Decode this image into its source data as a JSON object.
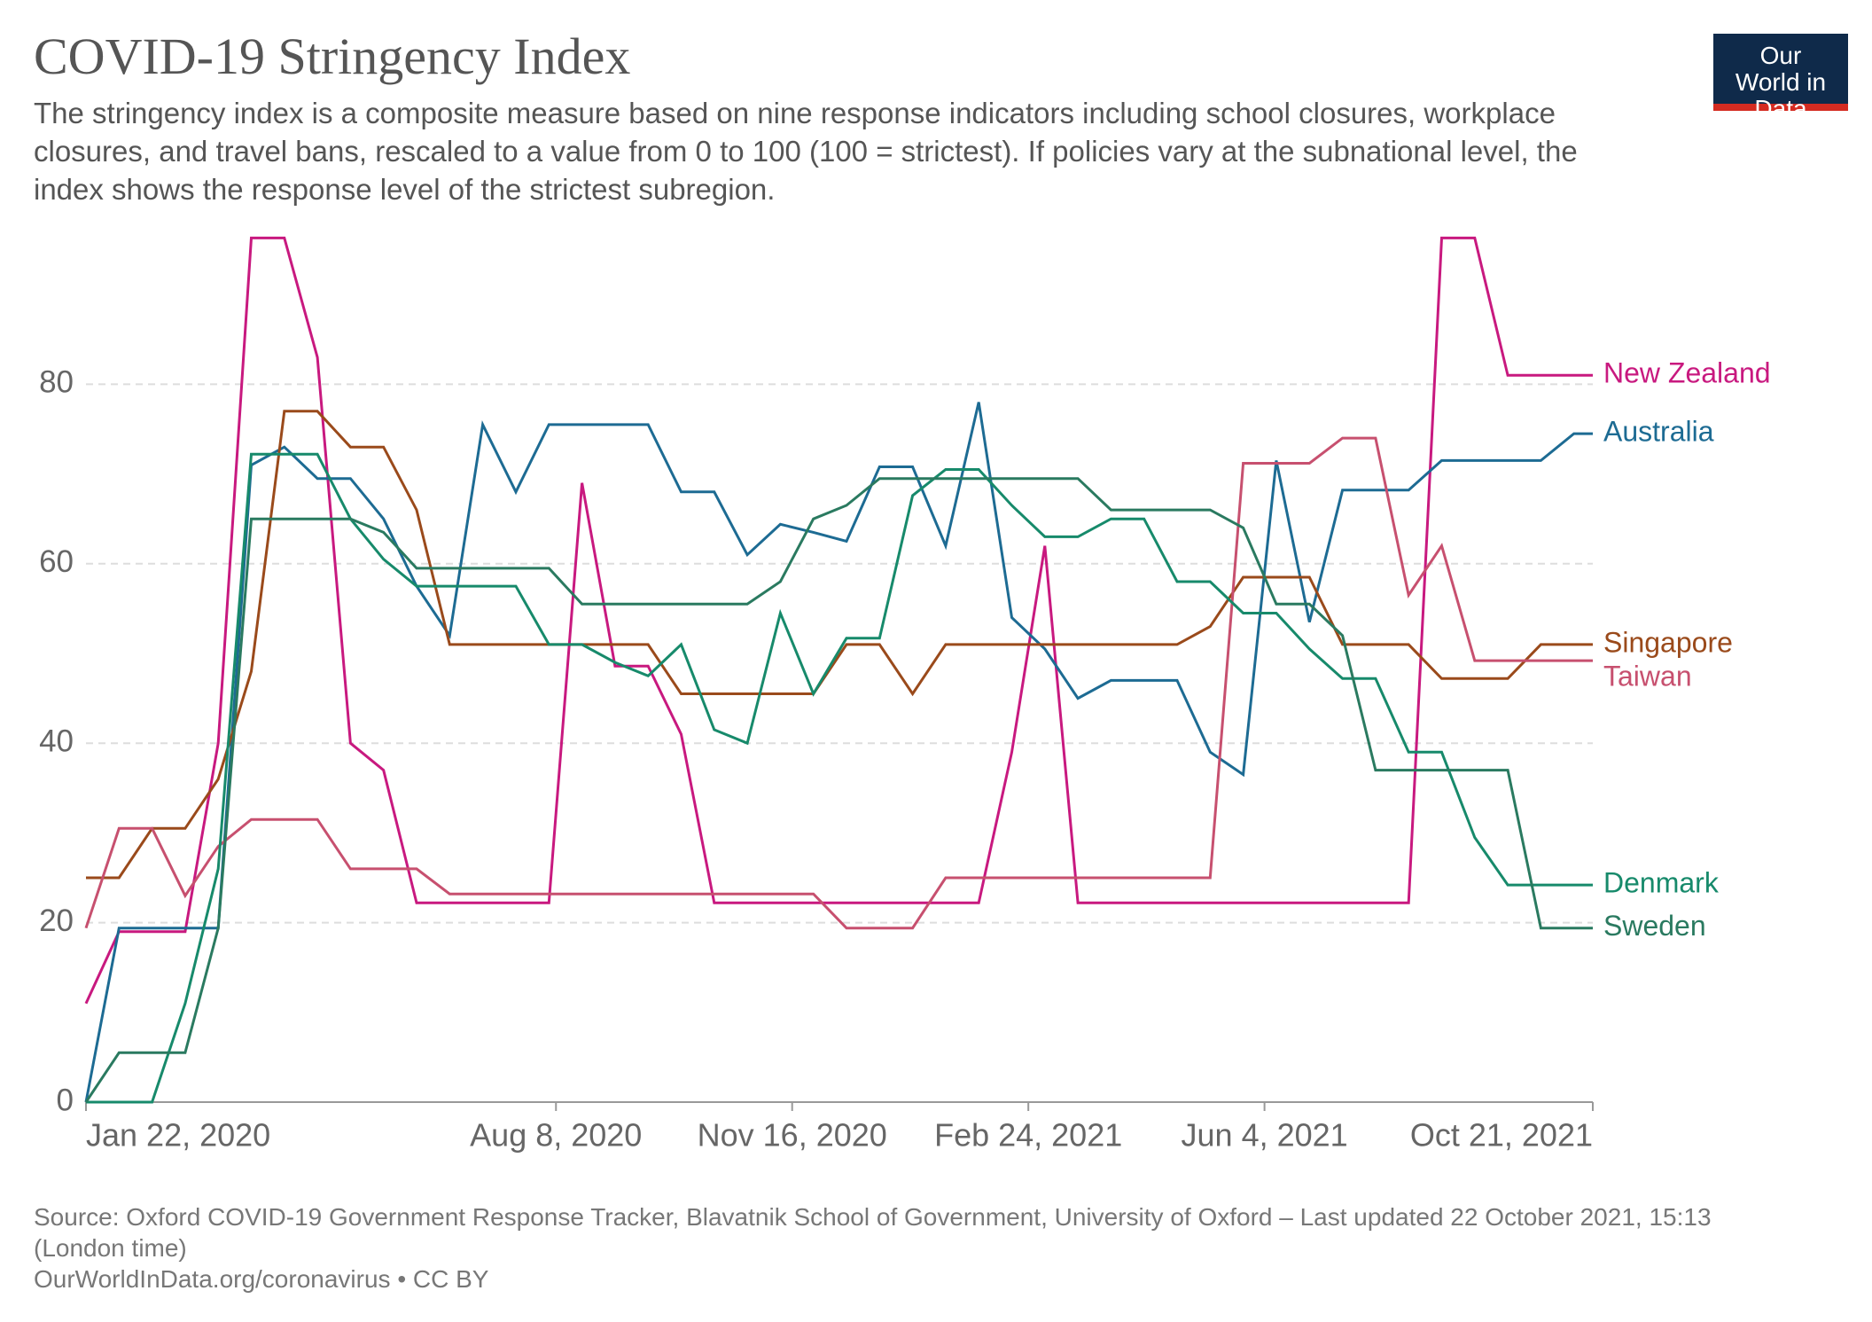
{
  "logo": "Our World in Data",
  "chart_data": {
    "type": "line",
    "title": "COVID-19 Stringency Index",
    "subtitle": "The stringency index is a composite measure based on nine response indicators including school closures, workplace closures, and travel bans, rescaled to a value from 0 to 100 (100 = strictest). If policies vary at the subnational level, the index shows the response level of the strictest subregion.",
    "source": "Source: Oxford COVID-19 Government Response Tracker, Blavatnik School of Government, University of Oxford – Last updated 22 October 2021, 15:13 (London time)",
    "credit": "OurWorldInData.org/coronavirus • CC BY",
    "x": [
      "2020-01-22",
      "2020-02-05",
      "2020-02-19",
      "2020-03-04",
      "2020-03-18",
      "2020-04-01",
      "2020-04-15",
      "2020-04-29",
      "2020-05-13",
      "2020-05-27",
      "2020-06-10",
      "2020-06-24",
      "2020-07-08",
      "2020-07-22",
      "2020-08-05",
      "2020-08-19",
      "2020-09-02",
      "2020-09-16",
      "2020-09-30",
      "2020-10-14",
      "2020-10-28",
      "2020-11-11",
      "2020-11-25",
      "2020-12-09",
      "2020-12-23",
      "2021-01-06",
      "2021-01-20",
      "2021-02-03",
      "2021-02-17",
      "2021-03-03",
      "2021-03-17",
      "2021-03-31",
      "2021-04-14",
      "2021-04-28",
      "2021-05-12",
      "2021-05-26",
      "2021-06-09",
      "2021-06-23",
      "2021-07-07",
      "2021-07-21",
      "2021-08-04",
      "2021-08-18",
      "2021-09-01",
      "2021-09-15",
      "2021-09-29",
      "2021-10-13",
      "2021-10-21"
    ],
    "xlim": [
      "2020-01-22",
      "2021-10-21"
    ],
    "xticks": [
      {
        "value": "2020-01-22",
        "label": "Jan 22, 2020"
      },
      {
        "value": "2020-08-08",
        "label": "Aug 8, 2020"
      },
      {
        "value": "2020-11-16",
        "label": "Nov 16, 2020"
      },
      {
        "value": "2021-02-24",
        "label": "Feb 24, 2021"
      },
      {
        "value": "2021-06-04",
        "label": "Jun 4, 2021"
      },
      {
        "value": "2021-10-21",
        "label": "Oct 21, 2021"
      }
    ],
    "ylim": [
      0,
      100
    ],
    "yticks": [
      0,
      20,
      40,
      60,
      80
    ],
    "grid": true,
    "series": [
      {
        "name": "New Zealand",
        "color": "#c8197f",
        "values": [
          11,
          19,
          19,
          19,
          40,
          96.3,
          96.3,
          83,
          40,
          37,
          22.2,
          22.2,
          22.2,
          22.2,
          22.2,
          69,
          48.6,
          48.6,
          41,
          22.2,
          22.2,
          22.2,
          22.2,
          22.2,
          22.2,
          22.2,
          22.2,
          22.2,
          39,
          62,
          22.2,
          22.2,
          22.2,
          22.2,
          22.2,
          22.2,
          22.2,
          22.2,
          22.2,
          22.2,
          22.2,
          96.3,
          96.3,
          81,
          81,
          81,
          81
        ]
      },
      {
        "name": "Australia",
        "color": "#1d6b93",
        "values": [
          0,
          19.4,
          19.4,
          19.4,
          19.4,
          71,
          73,
          69.5,
          69.5,
          65,
          57.5,
          52,
          75.5,
          68,
          75.5,
          75.5,
          75.5,
          75.5,
          68,
          68,
          61,
          64.4,
          63.5,
          62.5,
          70.8,
          70.8,
          62,
          78,
          54,
          50.5,
          45,
          47,
          47,
          47,
          39,
          36.5,
          71.5,
          53.5,
          68.2,
          68.2,
          68.2,
          71.5,
          71.5,
          71.5,
          71.5,
          74.5,
          74.5
        ]
      },
      {
        "name": "Singapore",
        "color": "#9a4a1b",
        "values": [
          25,
          25,
          30.5,
          30.5,
          36,
          48,
          77,
          77,
          73,
          73,
          66,
          51,
          51,
          51,
          51,
          51,
          51,
          51,
          45.5,
          45.5,
          45.5,
          45.5,
          45.5,
          51,
          51,
          45.5,
          51,
          51,
          51,
          51,
          51,
          51,
          51,
          51,
          53,
          58.5,
          58.5,
          58.5,
          51,
          51,
          51,
          47.2,
          47.2,
          47.2,
          51,
          51,
          51
        ]
      },
      {
        "name": "Taiwan",
        "color": "#c7506f",
        "values": [
          19.4,
          30.5,
          30.5,
          23,
          28.5,
          31.5,
          31.5,
          31.5,
          26,
          26,
          26,
          23.2,
          23.2,
          23.2,
          23.2,
          23.2,
          23.2,
          23.2,
          23.2,
          23.2,
          23.2,
          23.2,
          23.2,
          19.4,
          19.4,
          19.4,
          25,
          25,
          25,
          25,
          25,
          25,
          25,
          25,
          25,
          71.2,
          71.2,
          71.2,
          74,
          74,
          56.5,
          62,
          49.2,
          49.2,
          49.2,
          49.2,
          49.2
        ]
      },
      {
        "name": "Denmark",
        "color": "#178a6b",
        "values": [
          0,
          0,
          0,
          11,
          26,
          72.2,
          72.2,
          72.2,
          65,
          60.5,
          57.5,
          57.5,
          57.5,
          57.5,
          51,
          51,
          49,
          47.5,
          51,
          41.5,
          40,
          54.5,
          45.5,
          51.7,
          51.7,
          67.6,
          70.5,
          70.5,
          66.5,
          63,
          63,
          65,
          65,
          58,
          58,
          54.5,
          54.5,
          50.5,
          47.2,
          47.2,
          39,
          39,
          29.5,
          24.2,
          24.2,
          24.2,
          24.2
        ]
      },
      {
        "name": "Sweden",
        "color": "#2a7a60",
        "values": [
          0,
          5.5,
          5.5,
          5.5,
          19.4,
          65,
          65,
          65,
          65,
          63.5,
          59.5,
          59.5,
          59.5,
          59.5,
          59.5,
          55.5,
          55.5,
          55.5,
          55.5,
          55.5,
          55.5,
          58,
          65,
          66.5,
          69.5,
          69.5,
          69.5,
          69.5,
          69.5,
          69.5,
          69.5,
          66,
          66,
          66,
          66,
          64,
          55.5,
          55.5,
          52,
          37,
          37,
          37,
          37,
          37,
          19.4,
          19.4,
          19.4
        ]
      }
    ]
  }
}
